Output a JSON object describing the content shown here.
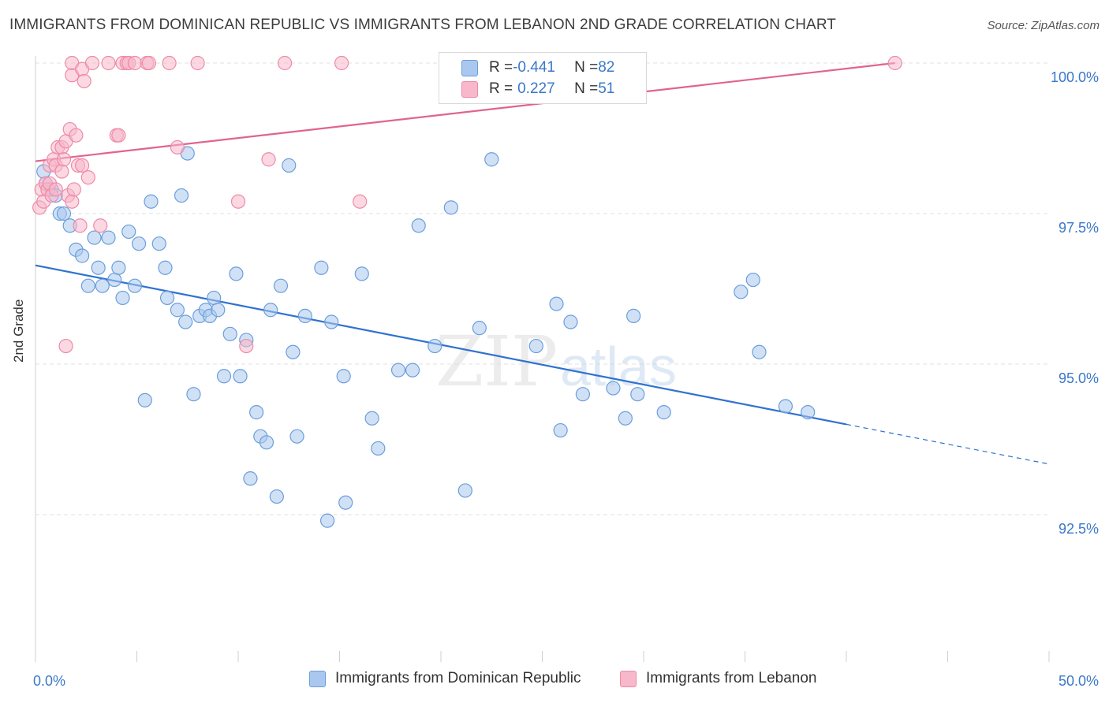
{
  "title": "IMMIGRANTS FROM DOMINICAN REPUBLIC VS IMMIGRANTS FROM LEBANON 2ND GRADE CORRELATION CHART",
  "source": "Source: ZipAtlas.com",
  "watermark": {
    "zip": "ZIP",
    "atlas": "atlas"
  },
  "legend_top": [
    {
      "r_label": "R = ",
      "r_value": "-0.441",
      "n_label": "N = ",
      "n_value": "82"
    },
    {
      "r_label": "R = ",
      "r_value": "0.227",
      "n_label": "N = ",
      "n_value": "51"
    }
  ],
  "colors": {
    "blue_fill": "#aac8ef",
    "blue_stroke": "#6b9edb",
    "blue_line": "#2f72d0",
    "pink_fill": "#f7b8cb",
    "pink_stroke": "#ee8aa8",
    "pink_line": "#e0648c",
    "tick_label": "#3a78c9",
    "grid": "#e2e2e2"
  },
  "chart_data": {
    "type": "scatter",
    "title": "IMMIGRANTS FROM DOMINICAN REPUBLIC VS IMMIGRANTS FROM LEBANON 2ND GRADE CORRELATION CHART",
    "xlabel": "",
    "ylabel": "2nd Grade",
    "xlim": [
      0,
      50
    ],
    "ylim": [
      90.2,
      100.4
    ],
    "x_tick_labels": [
      "0.0%",
      "50.0%"
    ],
    "y_ticks": [
      92.5,
      95.0,
      97.5,
      100.0
    ],
    "y_tick_labels": [
      "92.5%",
      "95.0%",
      "97.5%",
      "100.0%"
    ],
    "grid": true,
    "legend_position": "top-center and bottom",
    "series": [
      {
        "name": "Immigrants from Dominican Republic",
        "color": "blue",
        "points": [
          [
            0.4,
            98.2
          ],
          [
            0.5,
            98.0
          ],
          [
            0.8,
            97.9
          ],
          [
            1.0,
            97.8
          ],
          [
            1.2,
            97.5
          ],
          [
            1.4,
            97.5
          ],
          [
            1.7,
            97.3
          ],
          [
            2.0,
            96.9
          ],
          [
            2.3,
            96.8
          ],
          [
            2.6,
            96.3
          ],
          [
            2.9,
            97.1
          ],
          [
            3.1,
            96.6
          ],
          [
            3.3,
            96.3
          ],
          [
            3.6,
            97.1
          ],
          [
            3.9,
            96.4
          ],
          [
            4.1,
            96.6
          ],
          [
            4.3,
            96.1
          ],
          [
            4.6,
            97.2
          ],
          [
            4.9,
            96.3
          ],
          [
            5.1,
            97.0
          ],
          [
            5.4,
            94.4
          ],
          [
            5.7,
            97.7
          ],
          [
            6.1,
            97.0
          ],
          [
            6.4,
            96.6
          ],
          [
            6.5,
            96.1
          ],
          [
            7.0,
            95.9
          ],
          [
            7.2,
            97.8
          ],
          [
            7.4,
            95.7
          ],
          [
            7.5,
            98.5
          ],
          [
            7.8,
            94.5
          ],
          [
            8.1,
            95.8
          ],
          [
            8.4,
            95.9
          ],
          [
            8.6,
            95.8
          ],
          [
            8.8,
            96.1
          ],
          [
            9.0,
            95.9
          ],
          [
            9.3,
            94.8
          ],
          [
            9.6,
            95.5
          ],
          [
            9.9,
            96.5
          ],
          [
            10.1,
            94.8
          ],
          [
            10.4,
            95.4
          ],
          [
            10.6,
            93.1
          ],
          [
            10.9,
            94.2
          ],
          [
            11.1,
            93.8
          ],
          [
            11.4,
            93.7
          ],
          [
            11.6,
            95.9
          ],
          [
            11.9,
            92.8
          ],
          [
            12.1,
            96.3
          ],
          [
            12.5,
            98.3
          ],
          [
            12.7,
            95.2
          ],
          [
            12.9,
            93.8
          ],
          [
            13.3,
            95.8
          ],
          [
            14.1,
            96.6
          ],
          [
            14.4,
            92.4
          ],
          [
            14.6,
            95.7
          ],
          [
            15.2,
            94.8
          ],
          [
            15.3,
            92.7
          ],
          [
            16.1,
            96.5
          ],
          [
            16.6,
            94.1
          ],
          [
            16.9,
            93.6
          ],
          [
            17.9,
            94.9
          ],
          [
            18.6,
            94.9
          ],
          [
            18.9,
            97.3
          ],
          [
            19.7,
            95.3
          ],
          [
            20.5,
            97.6
          ],
          [
            21.2,
            92.9
          ],
          [
            21.9,
            95.6
          ],
          [
            22.5,
            98.4
          ],
          [
            24.7,
            95.3
          ],
          [
            25.7,
            96.0
          ],
          [
            25.9,
            93.9
          ],
          [
            26.4,
            95.7
          ],
          [
            27.0,
            94.5
          ],
          [
            28.5,
            94.6
          ],
          [
            29.1,
            94.1
          ],
          [
            29.5,
            95.8
          ],
          [
            29.7,
            94.5
          ],
          [
            31.0,
            94.2
          ],
          [
            34.8,
            96.2
          ],
          [
            35.4,
            96.4
          ],
          [
            35.7,
            95.2
          ],
          [
            37.0,
            94.3
          ],
          [
            38.1,
            94.2
          ]
        ]
      },
      {
        "name": "Immigrants from Lebanon",
        "color": "pink",
        "points": [
          [
            0.2,
            97.6
          ],
          [
            0.3,
            97.9
          ],
          [
            0.4,
            97.7
          ],
          [
            0.5,
            98.0
          ],
          [
            0.6,
            97.9
          ],
          [
            0.7,
            98.0
          ],
          [
            0.7,
            98.3
          ],
          [
            0.8,
            97.8
          ],
          [
            0.9,
            98.4
          ],
          [
            1.0,
            97.9
          ],
          [
            1.0,
            98.3
          ],
          [
            1.1,
            98.6
          ],
          [
            1.3,
            98.6
          ],
          [
            1.3,
            98.2
          ],
          [
            1.4,
            98.4
          ],
          [
            1.5,
            98.7
          ],
          [
            1.5,
            95.3
          ],
          [
            1.6,
            97.8
          ],
          [
            1.7,
            98.9
          ],
          [
            1.8,
            97.7
          ],
          [
            1.8,
            99.8
          ],
          [
            1.8,
            100.0
          ],
          [
            1.9,
            97.9
          ],
          [
            2.0,
            98.8
          ],
          [
            2.1,
            98.3
          ],
          [
            2.2,
            97.3
          ],
          [
            2.3,
            98.3
          ],
          [
            2.3,
            99.9
          ],
          [
            2.4,
            99.7
          ],
          [
            2.6,
            98.1
          ],
          [
            2.8,
            100.0
          ],
          [
            3.2,
            97.3
          ],
          [
            3.6,
            100.0
          ],
          [
            4.0,
            98.8
          ],
          [
            4.1,
            98.8
          ],
          [
            4.3,
            100.0
          ],
          [
            4.5,
            100.0
          ],
          [
            4.6,
            100.0
          ],
          [
            4.9,
            100.0
          ],
          [
            5.5,
            100.0
          ],
          [
            5.6,
            100.0
          ],
          [
            6.6,
            100.0
          ],
          [
            7.0,
            98.6
          ],
          [
            8.0,
            100.0
          ],
          [
            10.0,
            97.7
          ],
          [
            10.4,
            95.3
          ],
          [
            11.5,
            98.4
          ],
          [
            12.3,
            100.0
          ],
          [
            15.1,
            100.0
          ],
          [
            16.0,
            97.7
          ],
          [
            42.4,
            100.0
          ]
        ]
      }
    ],
    "trend_lines": [
      {
        "series": "Immigrants from Dominican Republic",
        "x": [
          0,
          40
        ],
        "y": [
          96.64,
          94.0
        ],
        "dashed_extension": {
          "x": [
            40,
            50
          ],
          "y": [
            94.0,
            93.34
          ]
        }
      },
      {
        "series": "Immigrants from Lebanon",
        "x": [
          0,
          42.4
        ],
        "y": [
          98.37,
          100.0
        ]
      }
    ]
  },
  "legend_bottom": [
    {
      "label": "Immigrants from Dominican Republic",
      "color": "blue"
    },
    {
      "label": "Immigrants from Lebanon",
      "color": "pink"
    }
  ]
}
